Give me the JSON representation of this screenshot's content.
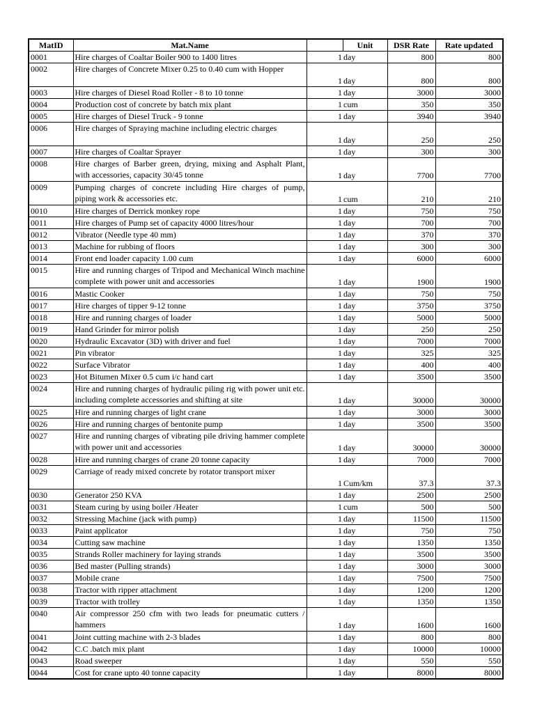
{
  "headers": {
    "id": "MatID",
    "name": "Mat.Name",
    "qty": "",
    "unit": "Unit",
    "dsr": "DSR Rate",
    "updated": "Rate updated"
  },
  "rows": [
    {
      "id": "0001",
      "name": "Hire charges of Coaltar Boiler 900 to 1400 litres",
      "qty": "1",
      "unit": "day",
      "dsr": "800",
      "updated": "800"
    },
    {
      "id": "0002",
      "name": "Hire charges of Concrete Mixer 0.25 to 0.40 cum with Hopper",
      "qty": "1",
      "unit": "day",
      "dsr": "800",
      "updated": "800"
    },
    {
      "id": "0003",
      "name": "Hire charges of Diesel Road Roller - 8 to 10 tonne",
      "qty": "1",
      "unit": "day",
      "dsr": "3000",
      "updated": "3000"
    },
    {
      "id": "0004",
      "name": "Production cost of concrete by batch mix plant",
      "qty": "1",
      "unit": "cum",
      "dsr": "350",
      "updated": "350"
    },
    {
      "id": "0005",
      "name": "Hire charges of Diesel Truck - 9 tonne",
      "qty": "1",
      "unit": "day",
      "dsr": "3940",
      "updated": "3940"
    },
    {
      "id": "0006",
      "name": "Hire charges of Spraying machine including electric charges",
      "qty": "1",
      "unit": "day",
      "dsr": "250",
      "updated": "250"
    },
    {
      "id": "0007",
      "name": "Hire charges of Coaltar Sprayer",
      "qty": "1",
      "unit": "day",
      "dsr": "300",
      "updated": "300"
    },
    {
      "id": "0008",
      "name": "Hire charges of Barber green, drying, mixing and Asphalt Plant, with accessories, capacity 30/45 tonne",
      "qty": "1",
      "unit": "day",
      "dsr": "7700",
      "updated": "7700"
    },
    {
      "id": "0009",
      "name": "Pumping charges of concrete including Hire charges of pump, piping work & accessories etc.",
      "qty": "1",
      "unit": "cum",
      "dsr": "210",
      "updated": "210"
    },
    {
      "id": "0010",
      "name": "Hire charges of Derrick monkey rope",
      "qty": "1",
      "unit": "day",
      "dsr": "750",
      "updated": "750"
    },
    {
      "id": "0011",
      "name": "Hire charges of Pump set of capacity 4000 litres/hour",
      "qty": "1",
      "unit": "day",
      "dsr": "700",
      "updated": "700"
    },
    {
      "id": "0012",
      "name": "Vibrator (Needle type 40 mm)",
      "qty": "1",
      "unit": "day",
      "dsr": "370",
      "updated": "370"
    },
    {
      "id": "0013",
      "name": "Machine for rubbing of floors",
      "qty": "1",
      "unit": "day",
      "dsr": "300",
      "updated": "300"
    },
    {
      "id": "0014",
      "name": "Front end loader capacity 1.00 cum",
      "qty": "1",
      "unit": "day",
      "dsr": "6000",
      "updated": "6000"
    },
    {
      "id": "0015",
      "name": "Hire and running charges of Tripod and Mechanical Winch machine complete with power unit and accessories",
      "qty": "1",
      "unit": "day",
      "dsr": "1900",
      "updated": "1900"
    },
    {
      "id": "0016",
      "name": "Mastic Cooker",
      "qty": "1",
      "unit": "day",
      "dsr": "750",
      "updated": "750"
    },
    {
      "id": "0017",
      "name": "Hire charges of tipper 9-12 tonne",
      "qty": "1",
      "unit": "day",
      "dsr": "3750",
      "updated": "3750"
    },
    {
      "id": "0018",
      "name": "Hire and running charges of loader",
      "qty": "1",
      "unit": "day",
      "dsr": "5000",
      "updated": "5000"
    },
    {
      "id": "0019",
      "name": "Hand Grinder for mirror polish",
      "qty": "1",
      "unit": "day",
      "dsr": "250",
      "updated": "250"
    },
    {
      "id": "0020",
      "name": "Hydraulic Excavator (3D) with driver and fuel",
      "qty": "1",
      "unit": "day",
      "dsr": "7000",
      "updated": "7000"
    },
    {
      "id": "0021",
      "name": "Pin vibrator",
      "qty": "1",
      "unit": "day",
      "dsr": "325",
      "updated": "325"
    },
    {
      "id": "0022",
      "name": "Surface Vibrator",
      "qty": "1",
      "unit": "day",
      "dsr": "400",
      "updated": "400"
    },
    {
      "id": "0023",
      "name": "Hot Bitumen Mixer 0.5 cum i/c hand cart",
      "qty": "1",
      "unit": "day",
      "dsr": "3500",
      "updated": "3500"
    },
    {
      "id": "0024",
      "name": "Hire and running charges of hydraulic piling rig with power unit etc. including complete accessories and shifting at site",
      "qty": "1",
      "unit": "day",
      "dsr": "30000",
      "updated": "30000"
    },
    {
      "id": "0025",
      "name": "Hire and running charges of light crane",
      "qty": "1",
      "unit": "day",
      "dsr": "3000",
      "updated": "3000"
    },
    {
      "id": "0026",
      "name": "Hire and running charges of bentonite pump",
      "qty": "1",
      "unit": "day",
      "dsr": "3500",
      "updated": "3500"
    },
    {
      "id": "0027",
      "name": "Hire and running charges of vibrating pile driving hammer complete with power unit and accessories",
      "qty": "1",
      "unit": "day",
      "dsr": "30000",
      "updated": "30000"
    },
    {
      "id": "0028",
      "name": "Hire and running charges of crane 20 tonne capacity",
      "qty": "1",
      "unit": "day",
      "dsr": "7000",
      "updated": "7000"
    },
    {
      "id": "0029",
      "name": "Carriage of ready mixed concrete by rotator transport mixer",
      "qty": "1",
      "unit": "Cum/km",
      "dsr": "37.3",
      "updated": "37.3"
    },
    {
      "id": "0030",
      "name": "Generator 250 KVA",
      "qty": "1",
      "unit": "day",
      "dsr": "2500",
      "updated": "2500"
    },
    {
      "id": "0031",
      "name": "Steam curing by using boiler /Heater",
      "qty": "1",
      "unit": "cum",
      "dsr": "500",
      "updated": "500"
    },
    {
      "id": "0032",
      "name": "Stressing Machine (jack with pump)",
      "qty": "1",
      "unit": "day",
      "dsr": "11500",
      "updated": "11500"
    },
    {
      "id": "0033",
      "name": "Paint applicator",
      "qty": "1",
      "unit": "day",
      "dsr": "750",
      "updated": "750"
    },
    {
      "id": "0034",
      "name": "Cutting saw machine",
      "qty": "1",
      "unit": "day",
      "dsr": "1350",
      "updated": "1350"
    },
    {
      "id": "0035",
      "name": "Strands Roller machinery for laying strands",
      "qty": "1",
      "unit": "day",
      "dsr": "3500",
      "updated": "3500"
    },
    {
      "id": "0036",
      "name": "Bed master (Pulling strands)",
      "qty": "1",
      "unit": "day",
      "dsr": "3000",
      "updated": "3000"
    },
    {
      "id": "0037",
      "name": "Mobile crane",
      "qty": "1",
      "unit": "day",
      "dsr": "7500",
      "updated": "7500"
    },
    {
      "id": "0038",
      "name": "Tractor with ripper attachment",
      "qty": "1",
      "unit": "day",
      "dsr": "1200",
      "updated": "1200"
    },
    {
      "id": "0039",
      "name": "Tractor with trolley",
      "qty": "1",
      "unit": "day",
      "dsr": "1350",
      "updated": "1350"
    },
    {
      "id": "0040",
      "name": "Air compressor 250 cfm with two leads for pneumatic cutters / hammers",
      "qty": "1",
      "unit": "day",
      "dsr": "1600",
      "updated": "1600"
    },
    {
      "id": "0041",
      "name": "Joint cutting machine with 2-3 blades",
      "qty": "1",
      "unit": "day",
      "dsr": "800",
      "updated": "800"
    },
    {
      "id": "0042",
      "name": "C.C .batch mix plant",
      "qty": "1",
      "unit": "day",
      "dsr": "10000",
      "updated": "10000"
    },
    {
      "id": "0043",
      "name": "Road sweeper",
      "qty": "1",
      "unit": "day",
      "dsr": "550",
      "updated": "550"
    },
    {
      "id": "0044",
      "name": "Cost for crane upto 40 tonne capacity",
      "qty": "1",
      "unit": "day",
      "dsr": "8000",
      "updated": "8000"
    }
  ]
}
